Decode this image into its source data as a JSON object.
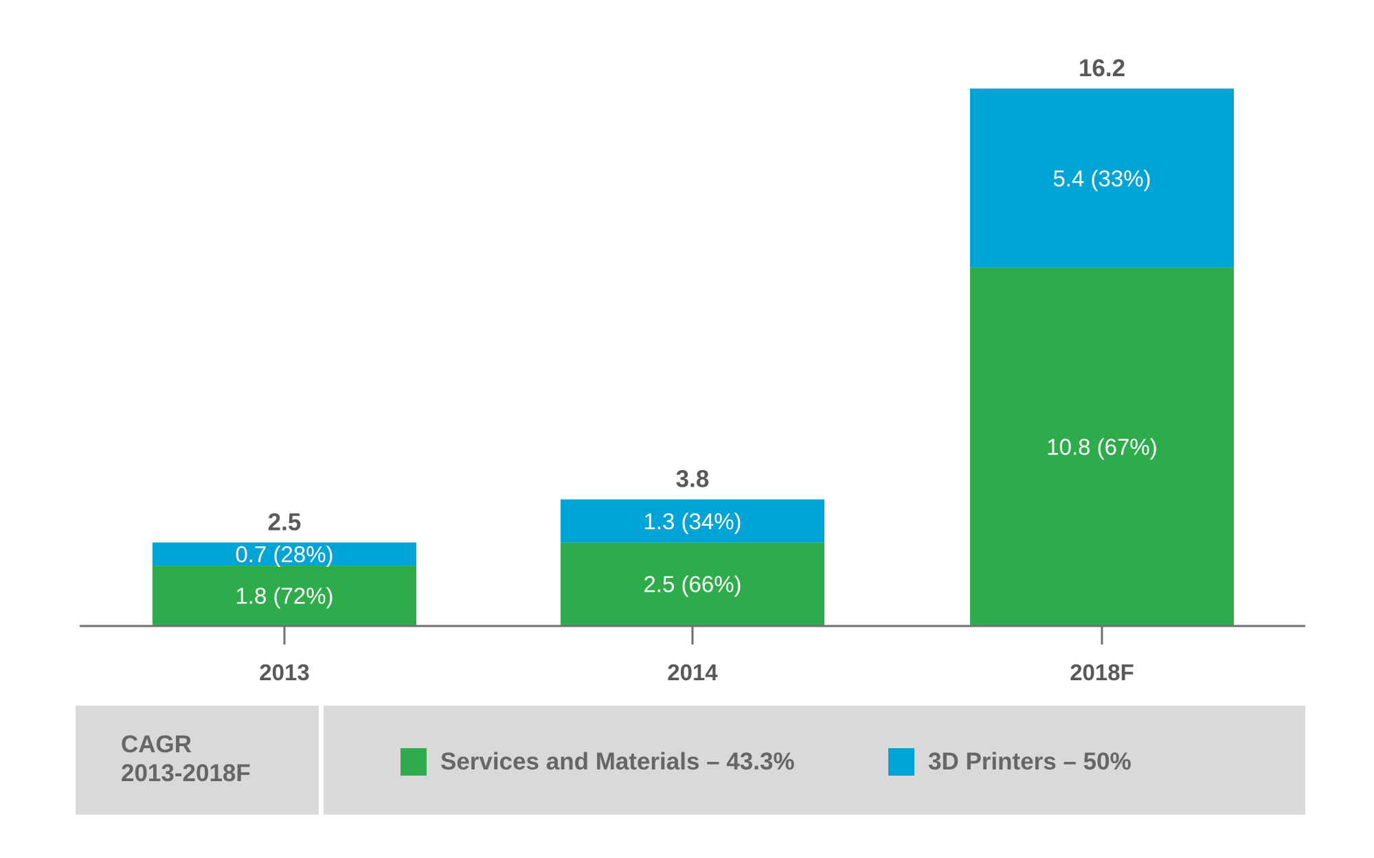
{
  "chart_data": {
    "type": "bar",
    "stacked": true,
    "title": "",
    "xlabel": "",
    "ylabel": "",
    "categories": [
      "2013",
      "2014",
      "2018F"
    ],
    "series": [
      {
        "name": "Services and Materials",
        "color": "#2eab4a",
        "values": [
          1.8,
          2.5,
          10.8
        ],
        "labels": [
          "1.8 (72%)",
          "2.5 (66%)",
          "10.8 (67%)"
        ]
      },
      {
        "name": "3D Printers",
        "color": "#00a3d6",
        "values": [
          0.7,
          1.3,
          5.4
        ],
        "labels": [
          "0.7 (28%)",
          "1.3 (34%)",
          "5.4 (33%)"
        ]
      }
    ],
    "totals": [
      "2.5",
      "3.8",
      "16.2"
    ],
    "ylim": [
      0,
      16.2
    ],
    "grid": false,
    "legend": {
      "placement": "bottom",
      "heading_line1": "CAGR",
      "heading_line2": "2013-2018F",
      "items": [
        {
          "label": "Services and Materials – 43.3%",
          "color": "#2eab4a"
        },
        {
          "label": "3D Printers – 50%",
          "color": "#00a3d6"
        }
      ]
    }
  }
}
